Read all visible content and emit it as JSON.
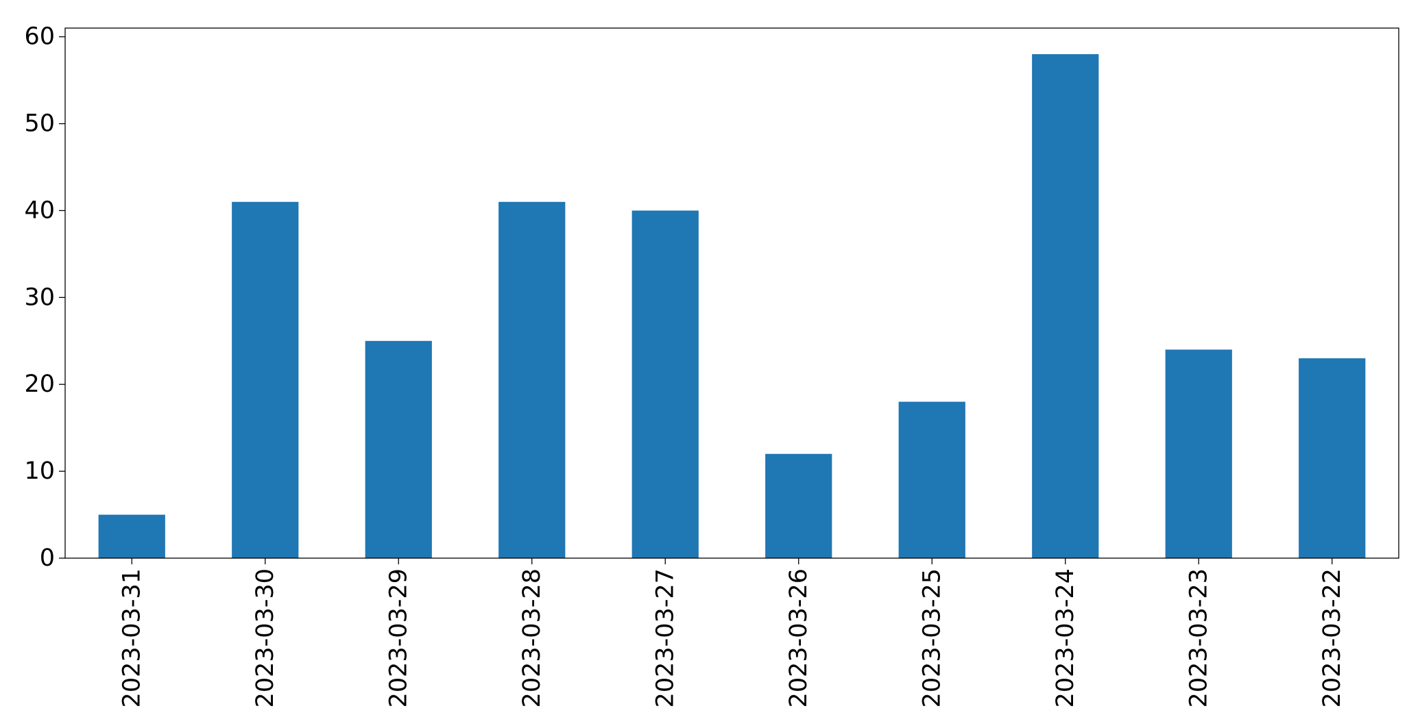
{
  "chart_data": {
    "type": "bar",
    "title": "",
    "xlabel": "",
    "ylabel": "",
    "categories": [
      "2023-03-31",
      "2023-03-30",
      "2023-03-29",
      "2023-03-28",
      "2023-03-27",
      "2023-03-26",
      "2023-03-25",
      "2023-03-24",
      "2023-03-23",
      "2023-03-22"
    ],
    "values": [
      5,
      41,
      25,
      41,
      40,
      12,
      18,
      58,
      24,
      23
    ],
    "ylim": [
      0,
      61
    ],
    "yticks": [
      0,
      10,
      20,
      30,
      40,
      50,
      60
    ],
    "grid": false,
    "legend": "none",
    "bar_color": "#1f77b4"
  }
}
